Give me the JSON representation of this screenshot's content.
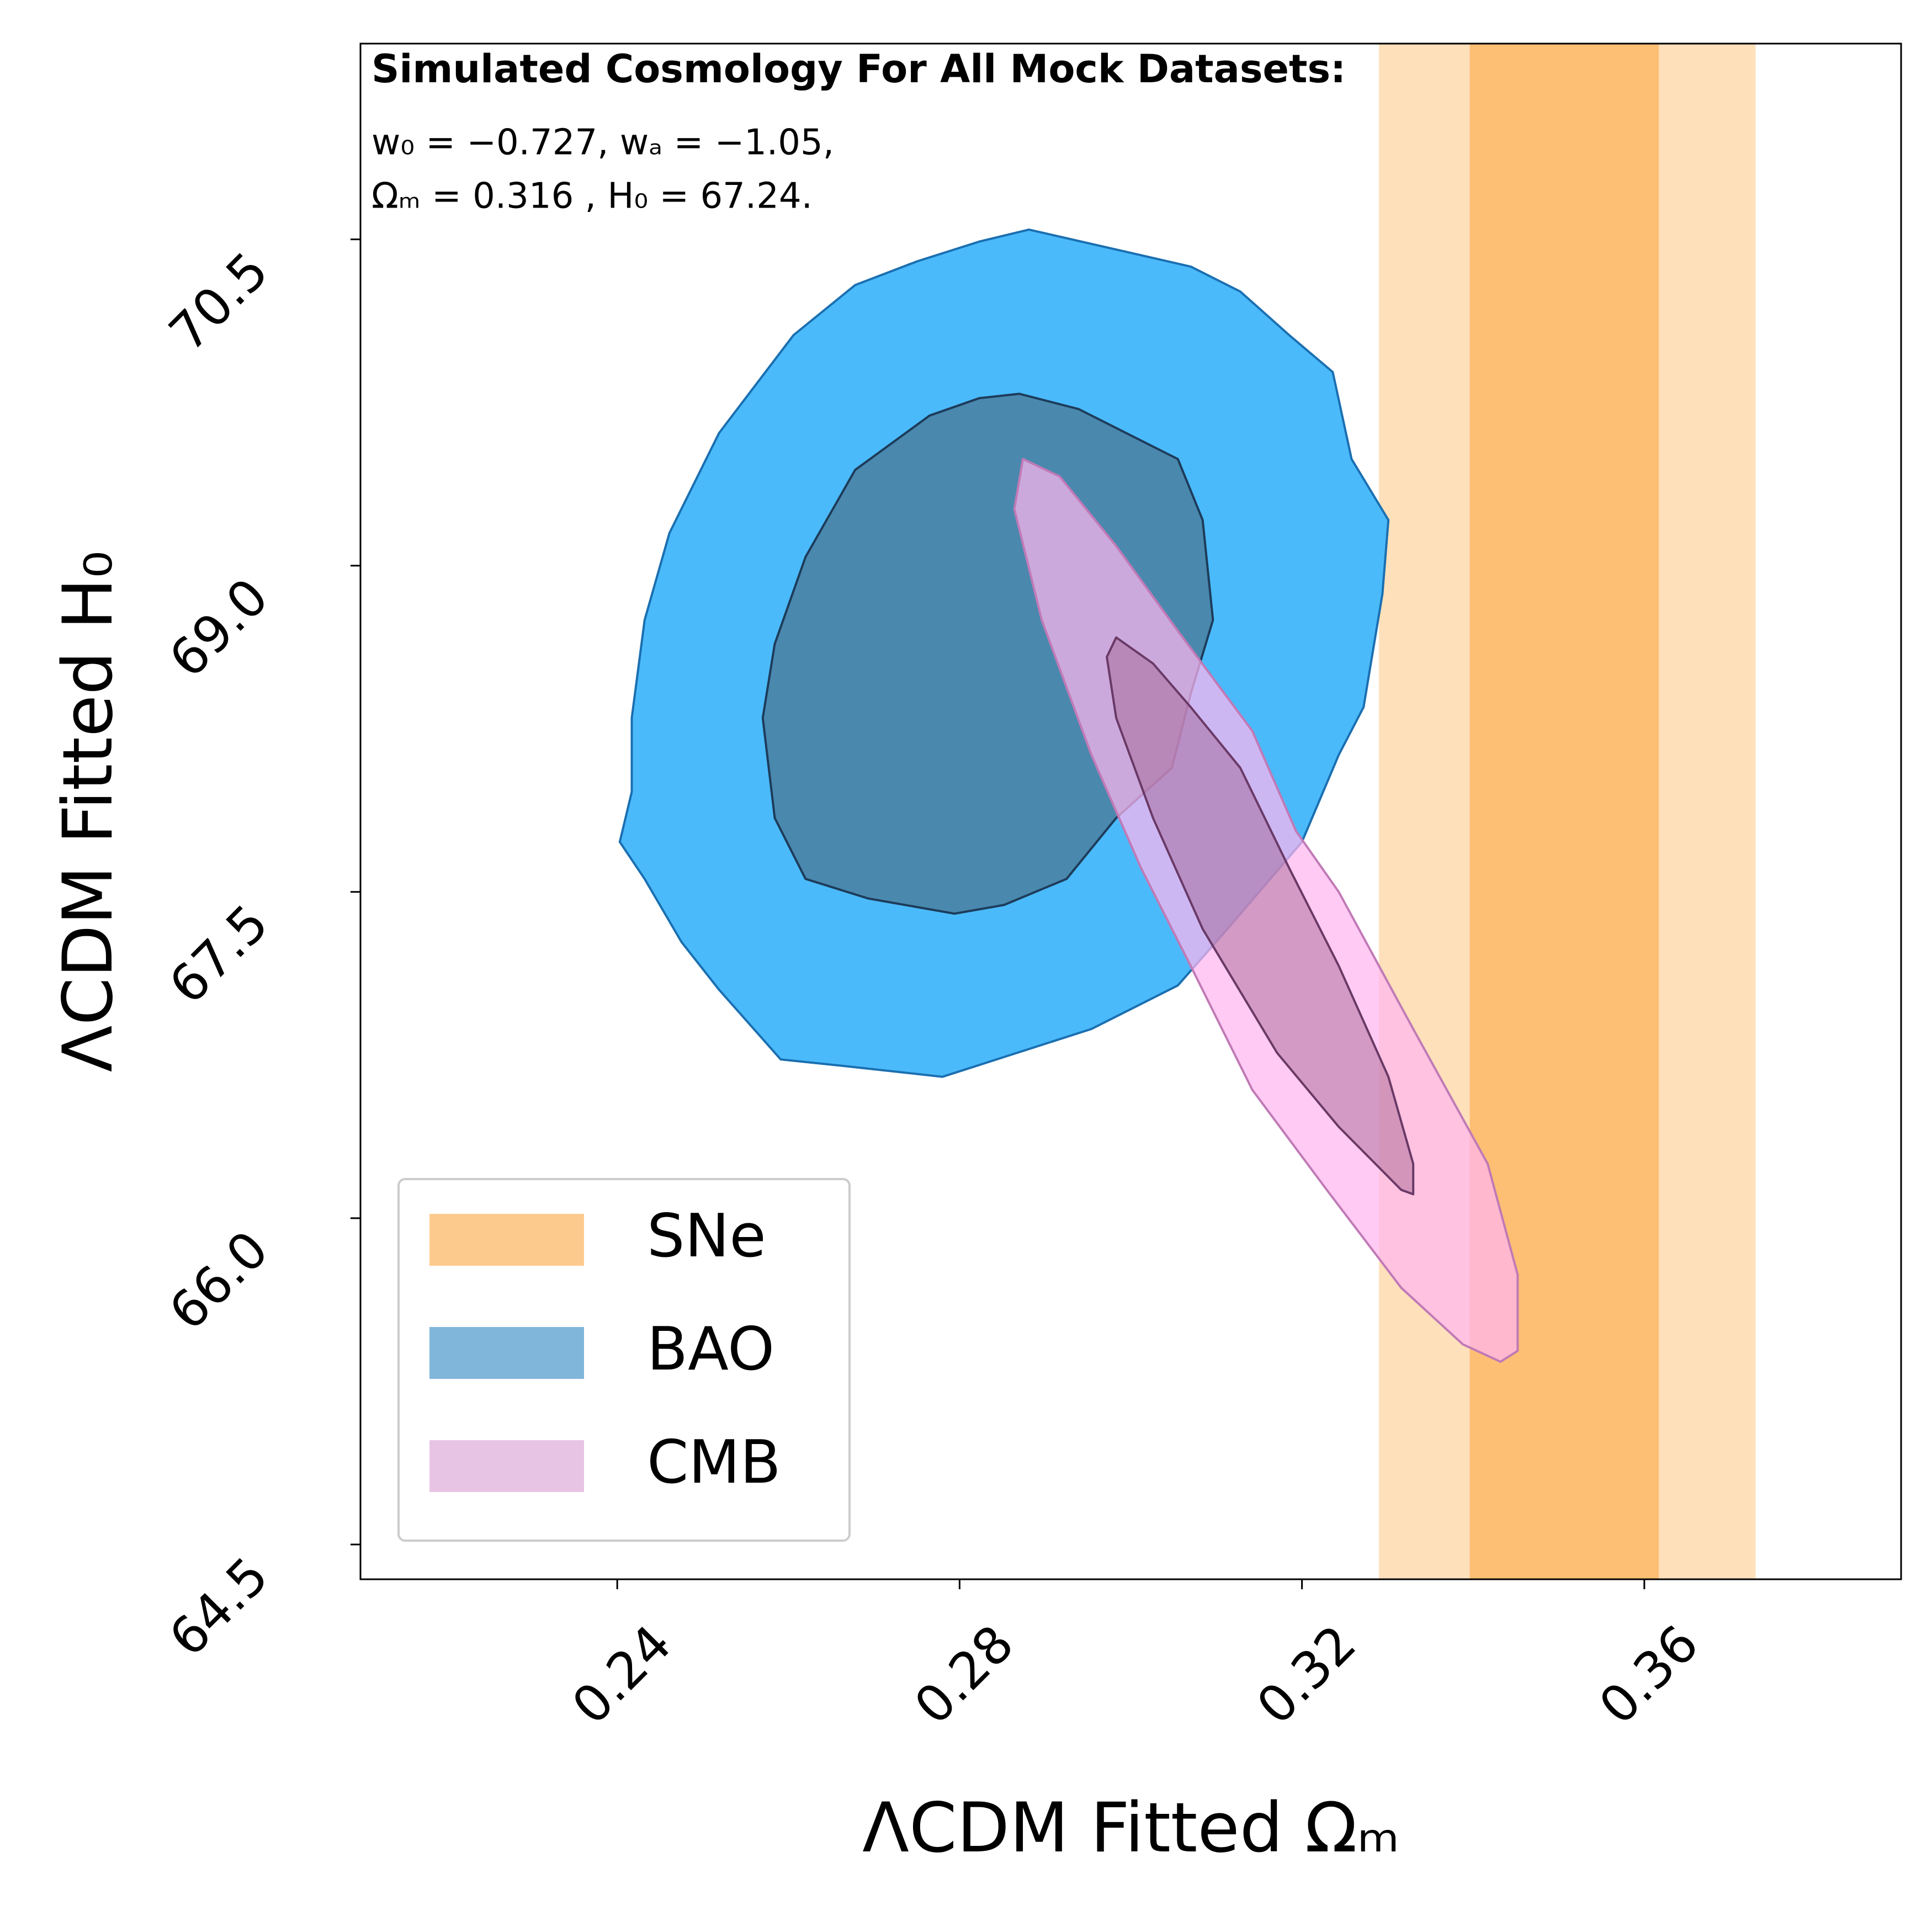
{
  "chart_data": {
    "type": "contour",
    "annotations": [
      "Simulated Cosmology For All Mock Datasets:",
      "w₀ = −0.727, wₐ = −1.05,",
      "Ωₘ = 0.316   , H₀ = 67.24."
    ],
    "xlabel": "ΛCDM Fitted Ωₘ",
    "ylabel": "ΛCDM Fitted H₀",
    "xlim": [
      0.21,
      0.39
    ],
    "ylim": [
      64.34,
      71.4
    ],
    "xticks": [
      0.24,
      0.28,
      0.32,
      0.36
    ],
    "yticks": [
      64.5,
      {
        "value": 66,
        "label": "66.0"
      },
      67.5,
      {
        "value": 69,
        "label": "69.0"
      },
      70.5
    ],
    "legend": "lower left",
    "series": [
      {
        "name": "SNe",
        "color": "#fdca8e",
        "ranges": [
          {
            "xmin": 0.329,
            "xmax": 0.373,
            "color": "#fee0bb"
          },
          {
            "xmin": 0.3396,
            "xmax": 0.3617,
            "color": "#fdbf73"
          }
        ]
      },
      {
        "name": "BAO",
        "color": "#7fb6d9",
        "contours": [
          {
            "color": "#4bbafa",
            "edgecolor": "#1a6fb0",
            "alpha": 1,
            "x": [
              0.2881,
              0.307,
              0.3128,
              0.3185,
              0.3236,
              0.3258,
              0.3301,
              0.3294,
              0.3272,
              0.3243,
              0.32,
              0.3113,
              0.3055,
              0.2954,
              0.2867,
              0.278,
              0.2664,
              0.2591,
              0.2519,
              0.2475,
              0.2432,
              0.2403,
              0.2417,
              0.2417,
              0.2432,
              0.2461,
              0.2519,
              0.2606,
              0.2678,
              0.2751,
              0.2823
            ],
            "y": [
              70.545,
              70.375,
              70.26,
              70.06,
              69.89,
              69.49,
              69.21,
              68.87,
              68.35,
              68.13,
              67.73,
              67.33,
              67.07,
              66.87,
              66.76,
              66.65,
              66.7,
              66.73,
              67.05,
              67.27,
              67.56,
              67.73,
              67.96,
              68.3,
              68.75,
              69.15,
              69.61,
              70.06,
              70.29,
              70.4,
              70.49
            ]
          },
          {
            "color": "#4a88ae",
            "edgecolor": "#1d3c5a",
            "alpha": 1,
            "x": [
              0.287,
              0.2939,
              0.3055,
              0.3084,
              0.3096,
              0.307,
              0.3048,
              0.2983,
              0.2925,
              0.2852,
              0.2794,
              0.2693,
              0.262,
              0.2584,
              0.257,
              0.2584,
              0.262,
              0.2678,
              0.2765,
              0.2823
            ],
            "y": [
              69.79,
              69.72,
              69.49,
              69.21,
              68.75,
              68.41,
              68.07,
              67.84,
              67.56,
              67.44,
              67.4,
              67.47,
              67.56,
              67.84,
              68.3,
              68.64,
              69.04,
              69.44,
              69.69,
              69.77
            ]
          }
        ]
      },
      {
        "name": "CMB",
        "color": "#e7c4e3",
        "contours": [
          {
            "color": "#ffb6f0",
            "edgecolor": "#c07ab6",
            "alpha": 0.72,
            "x": [
              0.2874,
              0.2917,
              0.2983,
              0.3055,
              0.3142,
              0.3193,
              0.3243,
              0.333,
              0.3417,
              0.3452,
              0.3452,
              0.3432,
              0.3388,
              0.3316,
              0.3229,
              0.3142,
              0.307,
              0.3012,
              0.2954,
              0.2896,
              0.2864
            ],
            "y": [
              69.49,
              69.41,
              69.09,
              68.7,
              68.24,
              67.78,
              67.5,
              66.87,
              66.25,
              65.74,
              65.39,
              65.34,
              65.42,
              65.68,
              66.13,
              66.59,
              67.16,
              67.61,
              68.13,
              68.75,
              69.26
            ]
          },
          {
            "color": "#a0608f",
            "edgecolor": "#6a3a66",
            "alpha": 0.45,
            "x": [
              0.2983,
              0.3026,
              0.307,
              0.3128,
              0.3185,
              0.3243,
              0.3301,
              0.333,
              0.333,
              0.3316,
              0.3243,
              0.3171,
              0.3084,
              0.3026,
              0.2983,
              0.2972
            ],
            "y": [
              68.67,
              68.55,
              68.35,
              68.07,
              67.61,
              67.16,
              66.65,
              66.25,
              66.11,
              66.13,
              66.42,
              66.76,
              67.33,
              67.84,
              68.3,
              68.58
            ]
          }
        ]
      }
    ]
  }
}
